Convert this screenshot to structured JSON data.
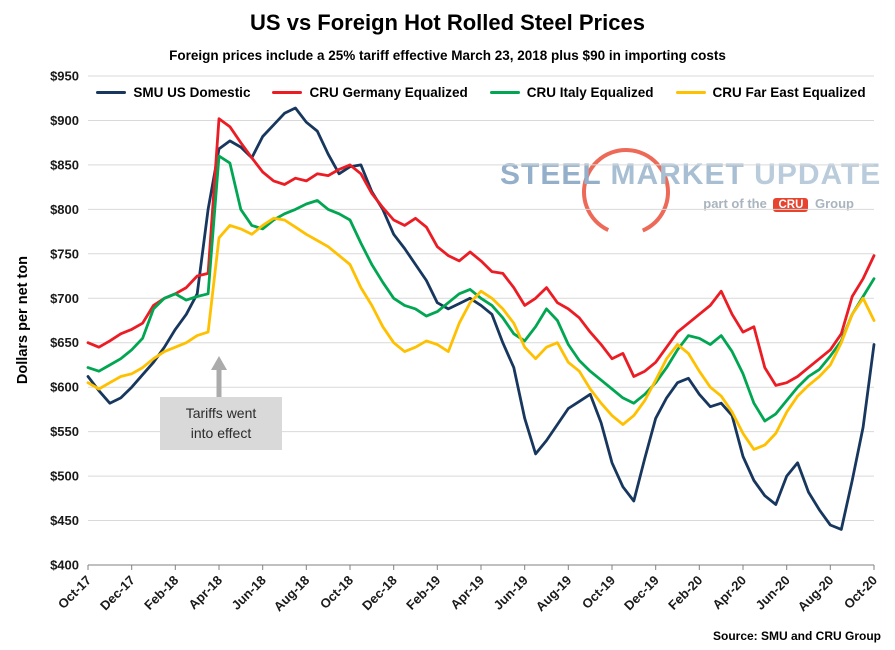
{
  "page": {
    "source": "Source: SMU and CRU Group"
  },
  "annotation": {
    "text": "Tariffs went\ninto effect"
  },
  "watermark": {
    "word1": "STEEL",
    "word2": "MARKET",
    "word3": "UPDATE",
    "tagline_prefix": "part of the",
    "badge": "CRU",
    "tagline_suffix": "Group",
    "accent_color": "#E8432E"
  },
  "chart_data": {
    "type": "line",
    "title": "US vs Foreign Hot Rolled Steel Prices",
    "subtitle": "Foreign prices include a 25% tariff effective March 23, 2018 plus $90 in importing costs",
    "ylabel": "Dollars per net ton",
    "xlabel": "",
    "ylim": [
      400,
      950
    ],
    "ytick_step": 50,
    "y_tick_prefix": "$",
    "grid": "horizontal",
    "legend_position": "top",
    "x_unit": "months since Oct-2017, data points every half month",
    "x_months_max": 36,
    "x_step_months": 0.5,
    "x_tick_positions_months": [
      0,
      2,
      4,
      6,
      8,
      10,
      12,
      14,
      16,
      18,
      20,
      22,
      24,
      26,
      28,
      30,
      32,
      34,
      36
    ],
    "x_tick_labels": [
      "Oct-17",
      "Dec-17",
      "Feb-18",
      "Apr-18",
      "Jun-18",
      "Aug-18",
      "Oct-18",
      "Dec-18",
      "Feb-19",
      "Apr-19",
      "Jun-19",
      "Aug-19",
      "Oct-19",
      "Dec-19",
      "Feb-20",
      "Apr-20",
      "Jun-20",
      "Aug-20",
      "Oct-20"
    ],
    "series": [
      {
        "name": "SMU US Domestic",
        "color": "#17375E",
        "values": [
          612,
          596,
          582,
          588,
          600,
          614,
          628,
          645,
          665,
          682,
          705,
          800,
          868,
          877,
          870,
          858,
          882,
          895,
          908,
          914,
          898,
          888,
          862,
          840,
          848,
          850,
          820,
          800,
          772,
          756,
          738,
          720,
          695,
          688,
          694,
          700,
          692,
          682,
          650,
          622,
          565,
          525,
          540,
          558,
          576,
          584,
          592,
          560,
          515,
          488,
          472,
          520,
          565,
          588,
          605,
          610,
          592,
          578,
          582,
          568,
          522,
          495,
          478,
          468,
          500,
          515,
          482,
          462,
          445,
          440,
          495,
          555,
          648
        ]
      },
      {
        "name": "CRU Germany Equalized",
        "color": "#EC1C24",
        "values": [
          650,
          645,
          652,
          660,
          665,
          672,
          692,
          700,
          705,
          712,
          725,
          728,
          902,
          893,
          875,
          858,
          842,
          832,
          828,
          835,
          832,
          840,
          838,
          845,
          850,
          840,
          818,
          802,
          788,
          782,
          790,
          780,
          758,
          748,
          742,
          752,
          742,
          730,
          728,
          712,
          692,
          700,
          712,
          695,
          688,
          678,
          662,
          648,
          632,
          638,
          612,
          618,
          628,
          645,
          662,
          672,
          682,
          692,
          708,
          682,
          662,
          668,
          622,
          602,
          605,
          612,
          622,
          632,
          642,
          660,
          702,
          722,
          748
        ]
      },
      {
        "name": "CRU Italy Equalized",
        "color": "#00A651",
        "values": [
          622,
          618,
          625,
          632,
          642,
          655,
          688,
          700,
          705,
          698,
          702,
          705,
          860,
          852,
          800,
          782,
          778,
          788,
          795,
          800,
          806,
          810,
          800,
          795,
          788,
          762,
          738,
          718,
          700,
          692,
          688,
          680,
          685,
          695,
          705,
          710,
          700,
          692,
          678,
          660,
          652,
          668,
          688,
          675,
          648,
          630,
          618,
          608,
          598,
          588,
          582,
          592,
          605,
          622,
          642,
          658,
          655,
          648,
          658,
          640,
          615,
          582,
          562,
          570,
          585,
          600,
          612,
          620,
          635,
          652,
          682,
          702,
          722
        ]
      },
      {
        "name": "CRU Far East Equalized",
        "color": "#FFC000",
        "values": [
          605,
          598,
          605,
          612,
          615,
          622,
          632,
          640,
          645,
          650,
          658,
          662,
          768,
          782,
          778,
          772,
          782,
          790,
          788,
          780,
          772,
          765,
          758,
          748,
          738,
          712,
          692,
          668,
          650,
          640,
          645,
          652,
          648,
          640,
          672,
          695,
          708,
          700,
          688,
          672,
          645,
          632,
          645,
          650,
          628,
          618,
          598,
          582,
          568,
          558,
          568,
          585,
          608,
          632,
          648,
          638,
          618,
          600,
          590,
          572,
          548,
          530,
          535,
          548,
          572,
          590,
          602,
          612,
          625,
          650,
          682,
          700,
          675
        ]
      }
    ]
  }
}
